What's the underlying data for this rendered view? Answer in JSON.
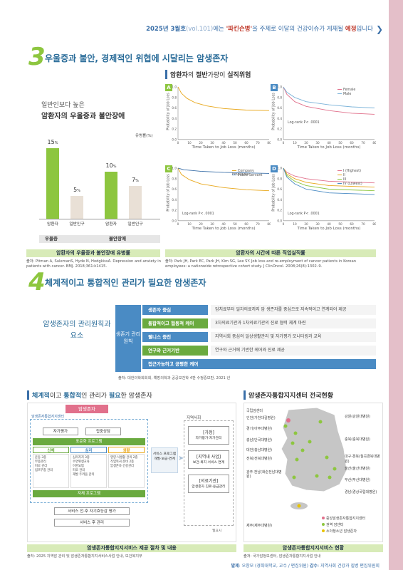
{
  "header": {
    "part1": "2025년 3월호",
    "part2": "(vol.101)",
    "part3": "에는 ",
    "part4": "'파킨슨병'",
    "part5": "을 주제로 이달의 건강이슈가 게재될 ",
    "part6": "예정",
    "part7": "입니다"
  },
  "section3": {
    "num": "3",
    "title": "우울증과 불안, 경제적인 위협에 시달리는 암생존자",
    "left": {
      "heading_small": "일반인보다 높은",
      "heading": "암환자의 우울증과 불안장애",
      "unit": "유병률(%)",
      "bars": [
        {
          "label": "암환자",
          "value": 15,
          "text": "15",
          "pct": "%"
        },
        {
          "label": "일반인구",
          "value": 5,
          "text": "5",
          "pct": "%"
        },
        {
          "label": "암환자",
          "value": 10,
          "text": "10",
          "pct": "%"
        },
        {
          "label": "일반인구",
          "value": 7,
          "text": "7",
          "pct": "%"
        }
      ],
      "groups": [
        "우울증",
        "불안장애"
      ],
      "caption": "암환자의 우울증과 불안장애 유병률",
      "source": "출처: Pitman A, SulemanS, Hyde N, HodgkissA. Depression and anxiety in patients with cancer. BMJ. 2018;361:k1415."
    },
    "right": {
      "title_a": "암환자",
      "title_b": "의 ",
      "title_c": "절반",
      "title_d": "가량이 ",
      "title_e": "실직위험",
      "panels": [
        {
          "id": "A"
        },
        {
          "id": "B",
          "legend": [
            "Female",
            "Male"
          ],
          "note": "Log-rank  P< .0001"
        },
        {
          "id": "C",
          "legend": [
            "Company Employee",
            "Public Servant"
          ],
          "note": "Log-rank  P< .0001"
        },
        {
          "id": "D",
          "legend": [
            "I (Highest)",
            "II",
            "III",
            "IV (Lowest)"
          ],
          "note": "Log-rank  P< .0001"
        }
      ],
      "ylabel": "Probability of Job Loss",
      "xlabel": "Time Taken to Job Loss (months)",
      "xticks": [
        "0",
        "10",
        "20",
        "30",
        "40",
        "50",
        "60",
        "70",
        "80"
      ],
      "yticks": [
        "1.0",
        "0.8",
        "0.6",
        "0.4",
        "0.2",
        "0.0"
      ],
      "caption": "암환자의 시간에 따른 직업실직률",
      "source": "출처: Park JH, Park EC, Park JH, Kim SG, Lee SY. Job loss and re-employment of cancer patients in Korean employees: a nationwide retrospective cohort study. J ClinOncol. 2008;26(8):1302–9."
    }
  },
  "section4": {
    "num": "4",
    "title": "체계적이고 통합적인 관리가 필요한 암생존자",
    "left_label": "암생존자의 관리원칙과 요소",
    "center_label": "생존기 관리 원칙",
    "rows": [
      {
        "label": "생존자 중심",
        "desc": "암치료부터 일차의료까지 암 생존자를 중심으로 지속적이고 연계되어 제공"
      },
      {
        "label": "통합적이고 협동적 케어",
        "desc": "3차의료기관과 1차의료기관의 진료 협력 체계 마련"
      },
      {
        "label": "웰니스 증진",
        "desc": "지역사회 중심의 일상생활관리 및 자가평가 모니터링과 교육"
      },
      {
        "label": "연구와 근거기반",
        "desc": "연구와 근거에 기반한 케어와 진료 제공"
      },
      {
        "label": "접근가능하고 공평한 케어",
        "desc": ""
      }
    ],
    "source": "출처: 대한의학회회회, 예방의학과 공공보건학 4판 수정증보판, 2021 년"
  },
  "flow": {
    "title_a": "체계적",
    "title_b": "이고 ",
    "title_c": "통합적",
    "title_d": "인 관리가 ",
    "title_e": "필요",
    "title_f": "한 암생존자",
    "top": "암생존자",
    "center": "암생존자통합지지센터",
    "b1": "자가평가",
    "b2": "집중상담",
    "prog": "표준화 프로그램",
    "cols": [
      {
        "h": "신체",
        "items": [
          "운동 3종",
          "부종관리",
          "피로 관리",
          "림프부종 관리"
        ]
      },
      {
        "h": "심리",
        "items": [
          "심리지지 3종",
          "수면위생교육",
          "이완요법",
          "피로 관리",
          "재발 두려움 관리"
        ]
      },
      {
        "h": "생활",
        "items": [
          "영양·식생활 관리 2종",
          "직업복귀 준비 2종",
          "암생존자 건강관리"
        ]
      }
    ],
    "selfprog": "자체 프로그램",
    "f1": "서비스 전·후 자기효능감 평가",
    "f2": "서비스 후 관리",
    "mid": "서비스 프로그램 개발·보급·연계",
    "community": "지역사회",
    "right": [
      {
        "h": "[가정]",
        "s": "자가평가·자가관리"
      },
      {
        "h": "[지역내 사업]",
        "s": "보건·복지 서비스 연계"
      },
      {
        "h": "[의료기관]",
        "s": "암생존자 진료·응급관리"
      }
    ],
    "legend": "필요시",
    "caption": "암생존자통합지지서비스 제공 절차 및 내용",
    "source": "출처: 2025 지역암 관리 및 암생존자통합지지서비스사업 안내, 보건복지부"
  },
  "map": {
    "title": "암생존자통합지지센터 전국현황",
    "left": [
      "국립암센터",
      "인천(가천대길병원)",
      "경기(아주대병원)",
      "충남(단국대병원)",
      "대전(충남대병원)",
      "전북(전북대병원)",
      "광주·전남(화순전남대병원)",
      "제주(제주대병원)"
    ],
    "right": [
      "강원(강원대병원)",
      "충북(충북대병원)",
      "대구·경북(칠곡경북대병원)",
      "울산(울산대병원)",
      "부산(부산대병원)",
      "경남(경상국립대병원)"
    ],
    "legend": [
      "중앙암생존자통합지지센터",
      "권역 암센터",
      "소아청소년 암생존자"
    ],
    "caption": "암생존자통합지지서비스 현황",
    "source": "출처: 국가암정보센터, 암생존자통합지지사업 안내"
  },
  "footer": {
    "a": "발제",
    "b": ": 오창모 (경희대학교, 교수 / 편집위원)  ",
    "c": "감수",
    "d": ": 지역사회 건강과 질병 편집위원회"
  },
  "colors": {
    "green": "#8dc63f",
    "blue": "#3a6fa8",
    "sidebar": "#e4bfc9"
  }
}
